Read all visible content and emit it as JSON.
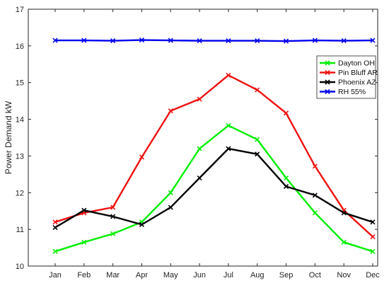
{
  "chart_data": {
    "type": "line",
    "title": "",
    "xlabel": "",
    "ylabel": "Power Demand kW",
    "categories": [
      "Jan",
      "Feb",
      "Mar",
      "Apr",
      "May",
      "Jun",
      "Jul",
      "Aug",
      "Sep",
      "Oct",
      "Nov",
      "Dec"
    ],
    "ylim": [
      10,
      17
    ],
    "yticks": [
      10,
      11,
      12,
      13,
      14,
      15,
      16,
      17
    ],
    "grid": false,
    "legend_position": "right",
    "series": [
      {
        "name": "Dayton OH",
        "color": "#00ee00",
        "values": [
          10.4,
          10.65,
          10.88,
          11.2,
          12.0,
          13.2,
          13.83,
          13.45,
          12.4,
          11.45,
          10.65,
          10.4
        ]
      },
      {
        "name": "Pin Bluff AR",
        "color": "#ee1111",
        "values": [
          11.2,
          11.45,
          11.6,
          12.97,
          14.23,
          14.55,
          15.2,
          14.8,
          14.17,
          12.72,
          11.52,
          10.8
        ]
      },
      {
        "name": "Phoenix AZ",
        "color": "#000000",
        "values": [
          11.05,
          11.52,
          11.35,
          11.13,
          11.6,
          12.4,
          13.2,
          13.05,
          12.17,
          11.93,
          11.45,
          11.2
        ]
      },
      {
        "name": "RH 55%",
        "color": "#0000ee",
        "values": [
          16.15,
          16.15,
          16.14,
          16.16,
          16.15,
          16.14,
          16.14,
          16.14,
          16.13,
          16.15,
          16.14,
          16.15
        ]
      }
    ]
  }
}
